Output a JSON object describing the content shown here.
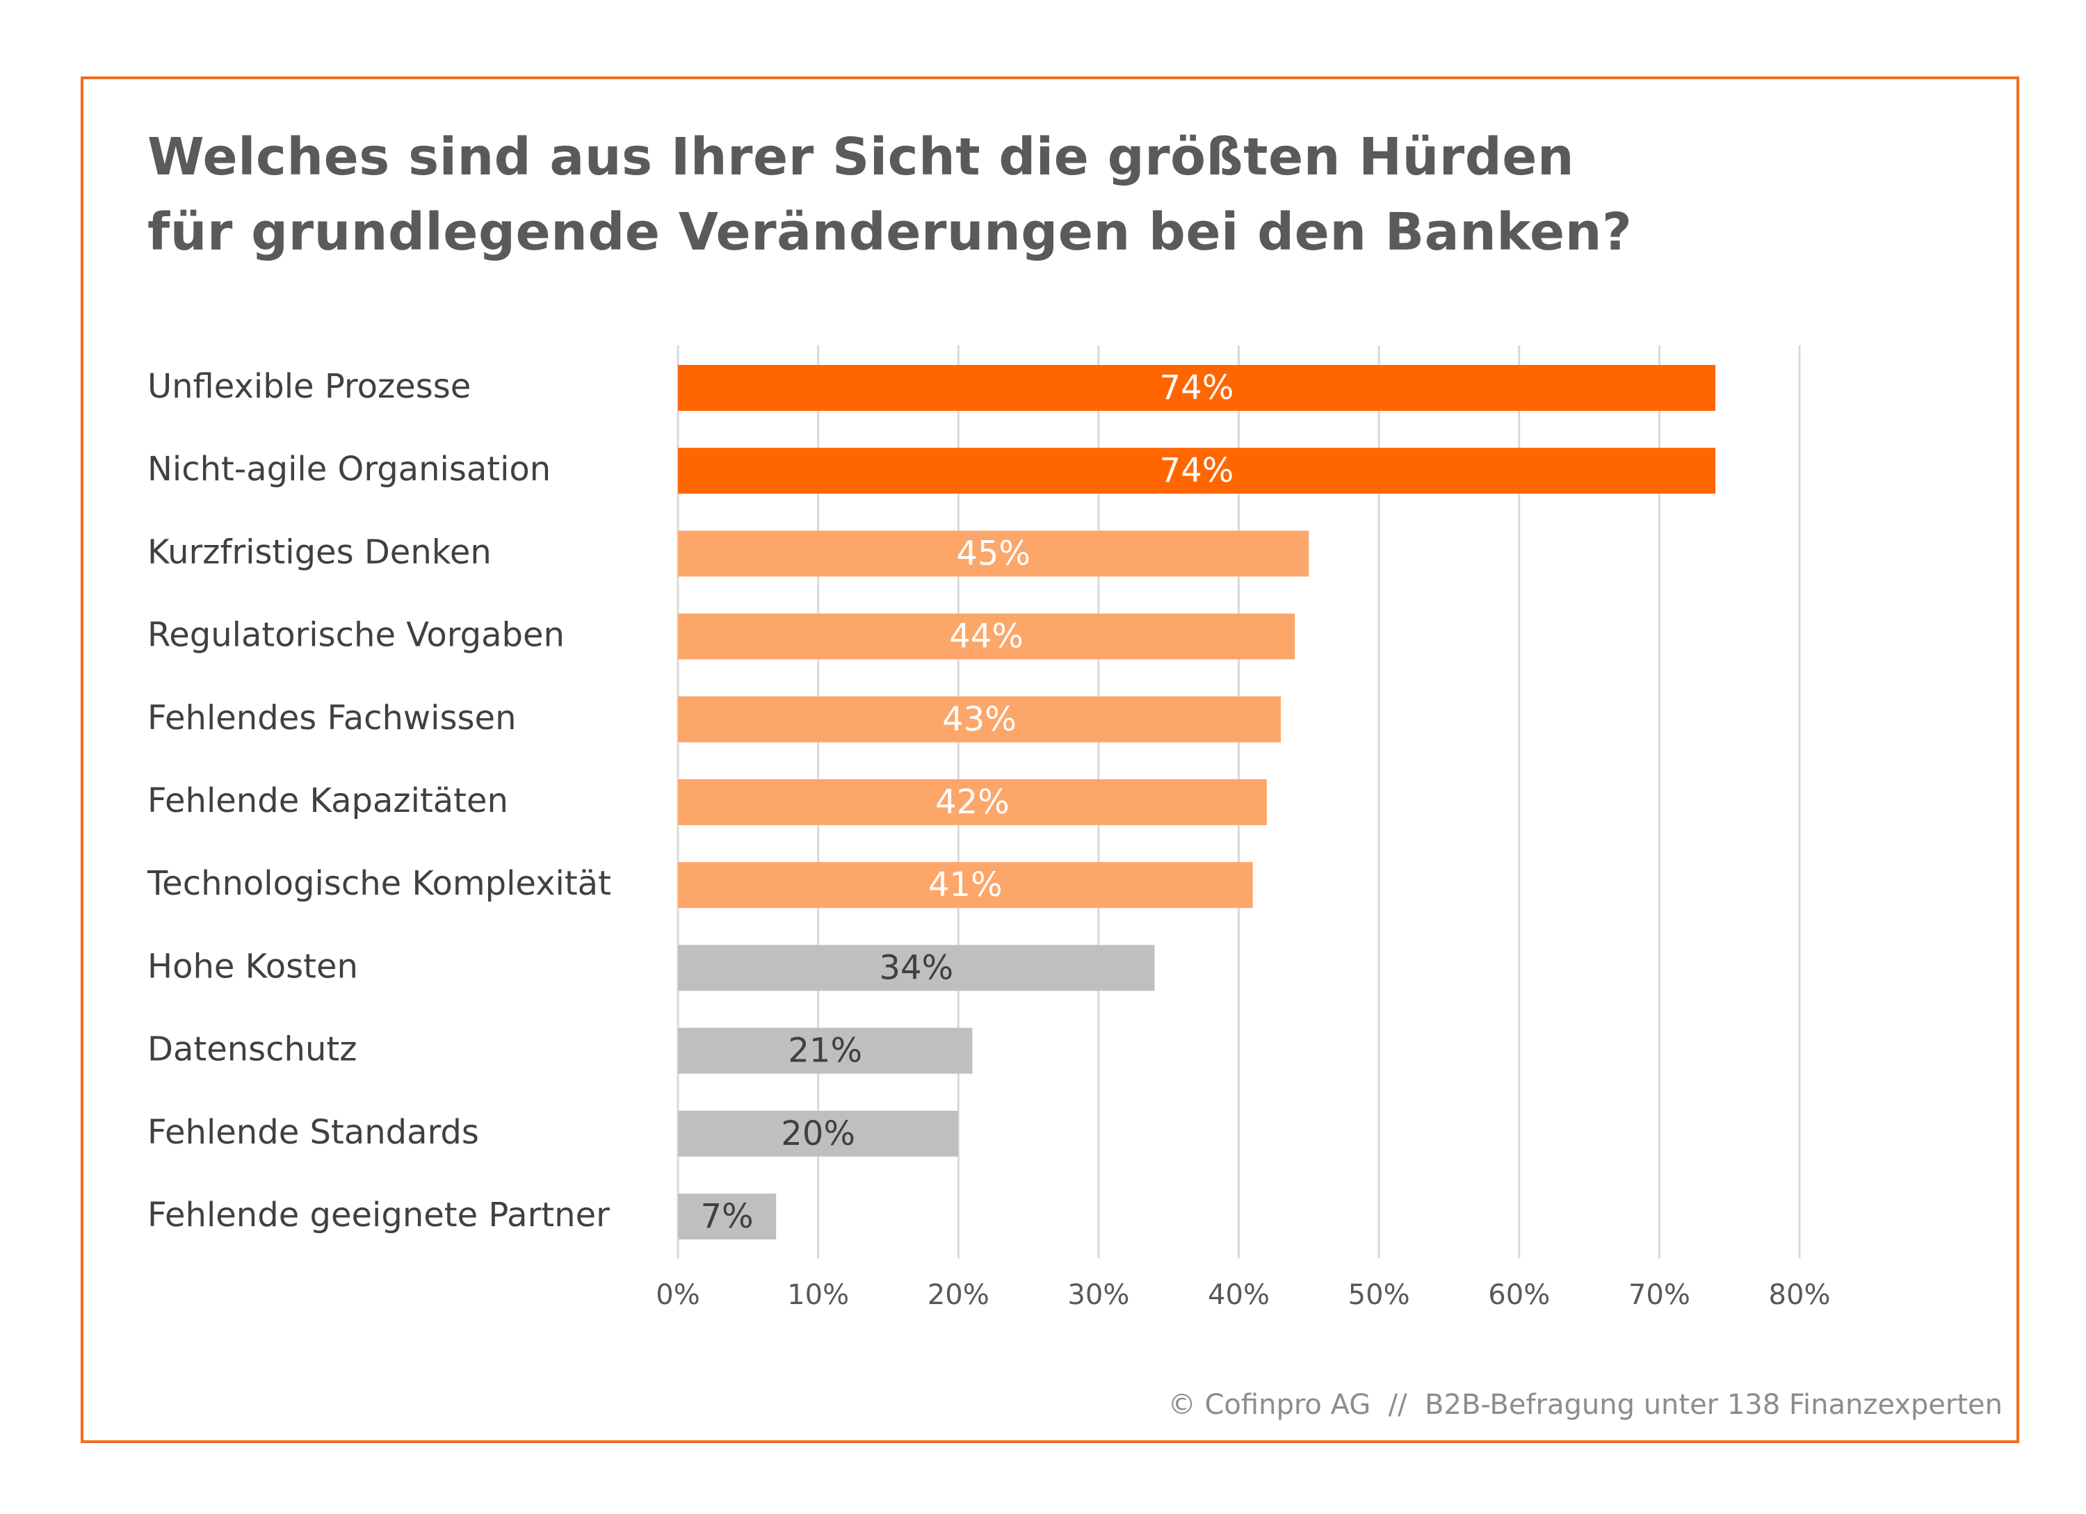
{
  "chart_data": {
    "type": "bar",
    "orientation": "horizontal",
    "title": "Welches sind aus Ihrer Sicht die größten Hürden für grundlegende Veränderungen bei den Banken?",
    "title_lines": [
      "Welches sind aus Ihrer Sicht die größten Hürden",
      "für grundlegende Veränderungen bei den Banken?"
    ],
    "xlabel": "",
    "ylabel": "",
    "categories": [
      "Unflexible Prozesse",
      "Nicht-agile Organisation",
      "Kurzfristiges Denken",
      "Regulatorische Vorgaben",
      "Fehlendes Fachwissen",
      "Fehlende Kapazitäten",
      "Technologische Komplexität",
      "Hohe Kosten",
      "Datenschutz",
      "Fehlende Standards",
      "Fehlende geeignete Partner"
    ],
    "values": [
      74,
      74,
      45,
      44,
      43,
      42,
      41,
      34,
      21,
      20,
      7
    ],
    "value_labels": [
      "74%",
      "74%",
      "45%",
      "44%",
      "43%",
      "42%",
      "41%",
      "34%",
      "21%",
      "20%",
      "7%"
    ],
    "value_unit": "%",
    "tiers": [
      "top",
      "top",
      "mid",
      "mid",
      "mid",
      "mid",
      "mid",
      "low",
      "low",
      "low",
      "low"
    ],
    "tier_colors": {
      "top": "#ff6600",
      "mid": "#fca66a",
      "low": "#bfbfbf"
    },
    "label_colors": {
      "top": "#ffffff",
      "mid": "#ffffff",
      "low": "#404040"
    },
    "xlim": [
      0,
      80
    ],
    "xticks": [
      0,
      10,
      20,
      30,
      40,
      50,
      60,
      70,
      80
    ],
    "xtick_labels": [
      "0%",
      "10%",
      "20%",
      "30%",
      "40%",
      "50%",
      "60%",
      "70%",
      "80%"
    ],
    "grid": "vertical",
    "legend": "none"
  },
  "colors": {
    "frame_border": "#f26d1f",
    "title_text": "#5a5a5a",
    "category_text": "#404040",
    "tick_text": "#595959",
    "gridline": "#d9d9d9",
    "footer_text": "#8c8c8c"
  },
  "footer": "© Cofinpro AG  //  B2B-Befragung unter 138 Finanzexperten"
}
